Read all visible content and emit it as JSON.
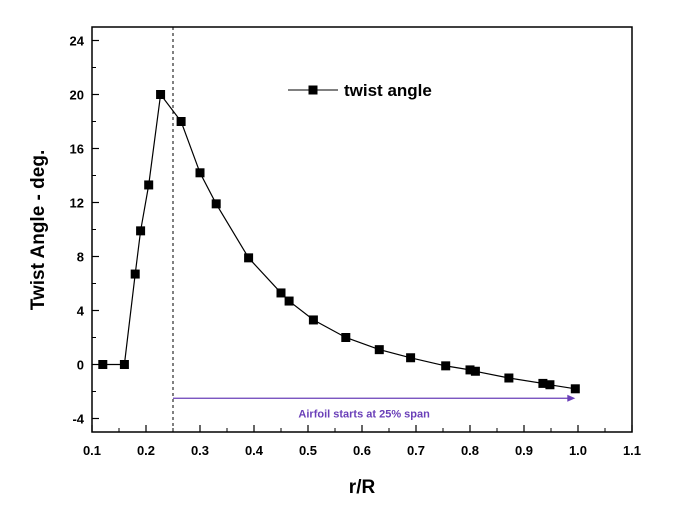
{
  "chart_data": {
    "type": "line",
    "title": "",
    "xlabel": "r/R",
    "ylabel": "Twist Angle - deg.",
    "xlim": [
      0.1,
      1.1
    ],
    "ylim": [
      -5,
      25
    ],
    "xticks": [
      0.1,
      0.2,
      0.3,
      0.4,
      0.5,
      0.6,
      0.7,
      0.8,
      0.9,
      1.0,
      1.1
    ],
    "xtick_labels": [
      "0.1",
      "0.2",
      "0.3",
      "0.4",
      "0.5",
      "0.6",
      "0.7",
      "0.8",
      "0.9",
      "1.0",
      "1.1"
    ],
    "yticks": [
      -4,
      0,
      4,
      8,
      12,
      16,
      20,
      24
    ],
    "ytick_labels": [
      "-4",
      "0",
      "4",
      "8",
      "12",
      "16",
      "20",
      "24"
    ],
    "grid": false,
    "legend_position": "top-center",
    "series": [
      {
        "name": "twist angle",
        "marker": "square",
        "color": "#000000",
        "x": [
          0.12,
          0.16,
          0.18,
          0.19,
          0.205,
          0.227,
          0.265,
          0.3,
          0.33,
          0.39,
          0.45,
          0.465,
          0.51,
          0.57,
          0.632,
          0.69,
          0.755,
          0.8,
          0.81,
          0.872,
          0.935,
          0.948,
          0.995
        ],
        "y": [
          0.0,
          0.0,
          6.7,
          9.9,
          13.3,
          20.0,
          18.0,
          14.2,
          11.9,
          7.9,
          5.3,
          4.7,
          3.3,
          2.0,
          1.1,
          0.5,
          -0.1,
          -0.4,
          -0.5,
          -1.0,
          -1.4,
          -1.5,
          -1.8
        ]
      }
    ],
    "annotations": [
      {
        "text": "Airfoil starts at 25% span",
        "color": "#6a3fb8",
        "arrow_from_x": 0.25,
        "arrow_to_x": 0.995,
        "arrow_y": -2.5,
        "vline_x": 0.25
      }
    ]
  }
}
